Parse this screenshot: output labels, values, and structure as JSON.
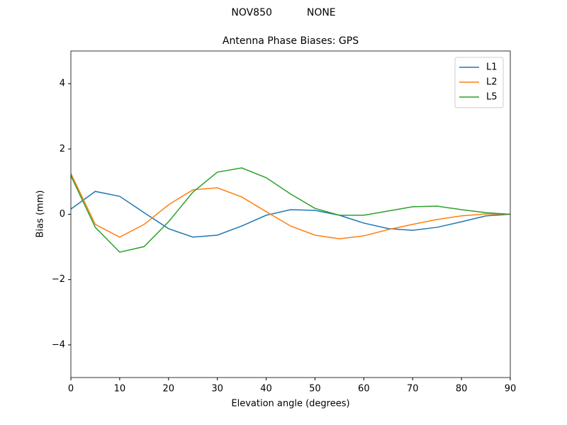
{
  "chart_data": {
    "type": "line",
    "suptitle": "NOV850           NONE",
    "title": "Antenna Phase Biases: GPS",
    "xlabel": "Elevation angle (degrees)",
    "ylabel": "Bias (mm)",
    "x": [
      0,
      5,
      10,
      15,
      20,
      25,
      30,
      35,
      40,
      45,
      50,
      55,
      60,
      65,
      70,
      75,
      80,
      85,
      90
    ],
    "series": [
      {
        "name": "L1",
        "color": "#1f77b4",
        "values": [
          0.16,
          0.7,
          0.55,
          0.05,
          -0.44,
          -0.7,
          -0.64,
          -0.36,
          -0.03,
          0.14,
          0.12,
          -0.03,
          -0.27,
          -0.44,
          -0.49,
          -0.4,
          -0.23,
          -0.05,
          0
        ]
      },
      {
        "name": "L2",
        "color": "#ff7f0e",
        "values": [
          1.25,
          -0.31,
          -0.7,
          -0.31,
          0.29,
          0.75,
          0.81,
          0.53,
          0.08,
          -0.36,
          -0.64,
          -0.75,
          -0.66,
          -0.47,
          -0.31,
          -0.16,
          -0.05,
          0.01,
          0
        ]
      },
      {
        "name": "L5",
        "color": "#2ca02c",
        "values": [
          1.18,
          -0.4,
          -1.16,
          -0.99,
          -0.23,
          0.68,
          1.29,
          1.42,
          1.12,
          0.62,
          0.18,
          -0.03,
          -0.03,
          0.1,
          0.23,
          0.25,
          0.14,
          0.05,
          0
        ]
      }
    ],
    "xlim": [
      0,
      90
    ],
    "ylim": [
      -5,
      5
    ],
    "xticks": [
      0,
      10,
      20,
      30,
      40,
      50,
      60,
      70,
      80,
      90
    ],
    "yticks": [
      {
        "value": -4,
        "label": "−4"
      },
      {
        "value": -2,
        "label": "−2"
      },
      0,
      2,
      4
    ],
    "grid": false,
    "legend": "upper-right"
  }
}
